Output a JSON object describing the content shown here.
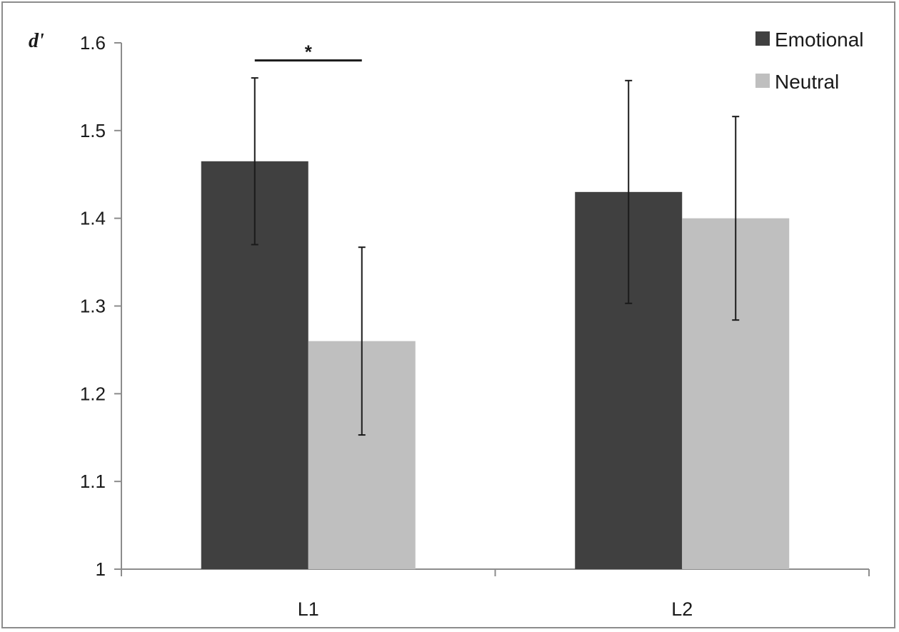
{
  "chart_data": {
    "type": "bar",
    "ylabel": "d'",
    "xlabel": "",
    "title": "",
    "categories": [
      "L1",
      "L2"
    ],
    "ylim": [
      1,
      1.6
    ],
    "yticks": [
      1,
      1.1,
      1.2,
      1.3,
      1.4,
      1.5,
      1.6
    ],
    "ytick_labels": [
      "1",
      "1.1",
      "1.2",
      "1.3",
      "1.4",
      "1.5",
      "1.6"
    ],
    "series": [
      {
        "name": "Emotional",
        "color": "#404040",
        "values": [
          1.465,
          1.43
        ],
        "errors": [
          0.095,
          0.127
        ]
      },
      {
        "name": "Neutral",
        "color": "#bfbfbf",
        "values": [
          1.26,
          1.4
        ],
        "errors": [
          0.107,
          0.116
        ]
      }
    ],
    "legend": {
      "position": "top-right"
    },
    "grid": false,
    "annotations": [
      {
        "text": "*",
        "between": [
          "L1 Emotional",
          "L1 Neutral"
        ],
        "y": 1.58
      }
    ]
  }
}
